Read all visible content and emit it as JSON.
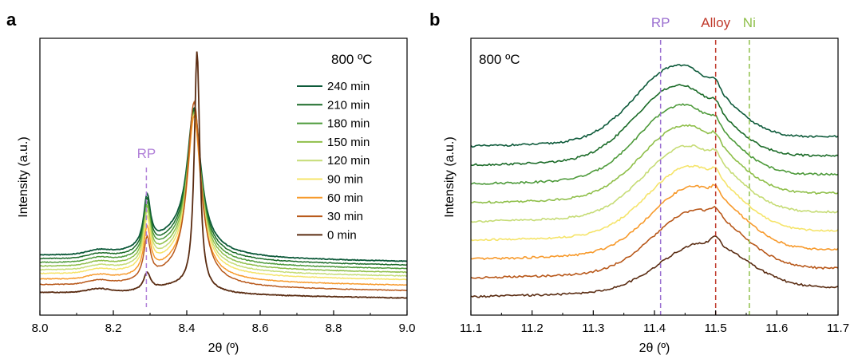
{
  "figure": {
    "panels": [
      {
        "label": "a"
      },
      {
        "label": "b"
      }
    ]
  },
  "chart_data": [
    {
      "type": "line",
      "panel": "a",
      "xlabel": "2θ (º)",
      "ylabel": "Intensity (a.u.)",
      "xlim": [
        8.0,
        9.0
      ],
      "xticks": [
        "8.0",
        "8.2",
        "8.4",
        "8.6",
        "8.8",
        "9.0"
      ],
      "annotation_title": "800 ºC",
      "reference_lines": [
        {
          "label": "RP",
          "x": 8.29,
          "color": "#b07fd8"
        }
      ],
      "legend_position": "top-right",
      "peaks": {
        "rp_center": 8.292,
        "main_center": 8.425
      },
      "series": [
        {
          "name": "240 min",
          "color": "#0d5a3a",
          "baseline": 0.24,
          "rp_peak": 0.56,
          "main_peak": 0.975,
          "sharp": false
        },
        {
          "name": "210 min",
          "color": "#1b6b28",
          "baseline": 0.22,
          "rp_peak": 0.54,
          "main_peak": 0.97,
          "sharp": false
        },
        {
          "name": "180 min",
          "color": "#4d9a3a",
          "baseline": 0.2,
          "rp_peak": 0.52,
          "main_peak": 0.965,
          "sharp": false
        },
        {
          "name": "150 min",
          "color": "#8fbf4a",
          "baseline": 0.18,
          "rp_peak": 0.5,
          "main_peak": 0.962,
          "sharp": false
        },
        {
          "name": "120 min",
          "color": "#c6dc76",
          "baseline": 0.16,
          "rp_peak": 0.48,
          "main_peak": 0.96,
          "sharp": false
        },
        {
          "name": "90 min",
          "color": "#f5e46a",
          "baseline": 0.14,
          "rp_peak": 0.45,
          "main_peak": 0.96,
          "sharp": false
        },
        {
          "name": "60 min",
          "color": "#f79a2c",
          "baseline": 0.11,
          "rp_peak": 0.4,
          "main_peak": 0.965,
          "sharp": false
        },
        {
          "name": "30 min",
          "color": "#b8581a",
          "baseline": 0.08,
          "rp_peak": 0.34,
          "main_peak": 1.05,
          "sharp": false
        },
        {
          "name": "0 min",
          "color": "#5a2c12",
          "baseline": 0.04,
          "rp_peak": 0.15,
          "main_peak": 1.35,
          "sharp": true
        }
      ]
    },
    {
      "type": "line",
      "panel": "b",
      "xlabel": "2θ (º)",
      "ylabel": "Intensity (a.u.)",
      "xlim": [
        11.1,
        11.7
      ],
      "xticks": [
        "11.1",
        "11.2",
        "11.3",
        "11.4",
        "11.5",
        "11.6",
        "11.7"
      ],
      "annotation_title": "800 ºC",
      "reference_lines": [
        {
          "label": "RP",
          "x": 11.41,
          "color": "#9a6ed0"
        },
        {
          "label": "Alloy",
          "x": 11.5,
          "color": "#c0392b"
        },
        {
          "name": "Ni",
          "label": "Ni",
          "x": 11.555,
          "color": "#8fbf4a"
        }
      ],
      "series": [
        {
          "name": "240 min",
          "color": "#0d5a3a",
          "offset": 8,
          "center": 11.44,
          "height": 0.95
        },
        {
          "name": "210 min",
          "color": "#1b6b28",
          "offset": 7,
          "center": 11.44,
          "height": 0.93
        },
        {
          "name": "180 min",
          "color": "#4d9a3a",
          "offset": 6,
          "center": 11.445,
          "height": 0.92
        },
        {
          "name": "150 min",
          "color": "#8fbf4a",
          "offset": 5,
          "center": 11.45,
          "height": 0.9
        },
        {
          "name": "120 min",
          "color": "#c6dc76",
          "offset": 4,
          "center": 11.455,
          "height": 0.88
        },
        {
          "name": "90 min",
          "color": "#f5e46a",
          "offset": 3,
          "center": 11.46,
          "height": 0.86
        },
        {
          "name": "60 min",
          "color": "#f79a2c",
          "offset": 2,
          "center": 11.465,
          "height": 0.84
        },
        {
          "name": "30 min",
          "color": "#b8581a",
          "offset": 1,
          "center": 11.47,
          "height": 0.78
        },
        {
          "name": "0 min",
          "color": "#5a2c12",
          "offset": 0,
          "center": 11.48,
          "height": 0.6
        }
      ]
    }
  ]
}
